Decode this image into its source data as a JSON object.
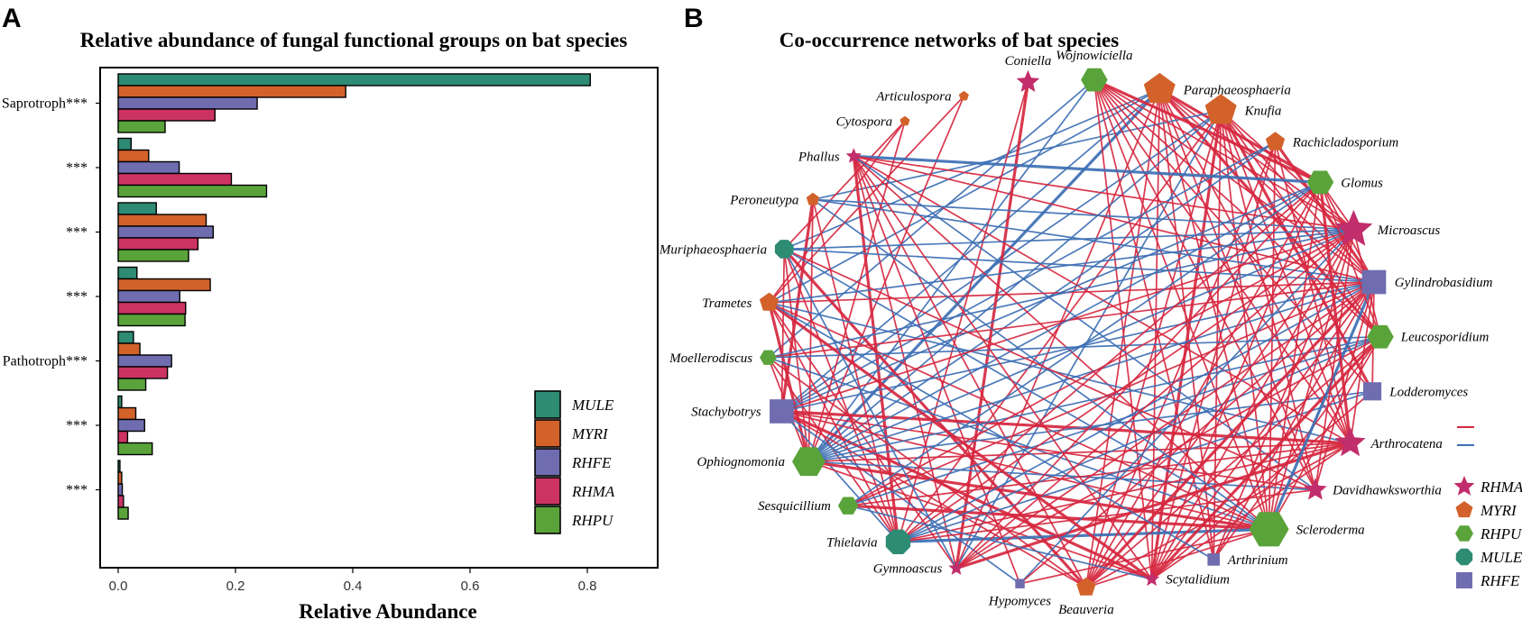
{
  "panels": {
    "a_letter": "A",
    "b_letter": "B"
  },
  "chart_data": [
    {
      "type": "bar",
      "orientation": "horizontal",
      "title": "Relative abundance of fungal functional groups on bat species",
      "xlabel": "Relative Abundance",
      "ylabel": "",
      "xlim": [
        0,
        0.8
      ],
      "xticks": [
        "0.0",
        "0.2",
        "0.4",
        "0.6",
        "0.8"
      ],
      "xtick_values": [
        0,
        0.2,
        0.4,
        0.6,
        0.8
      ],
      "categories": [
        "Saprotroph***",
        "***",
        "***",
        "***",
        "Pathotroph***",
        "***",
        "***"
      ],
      "series": [
        {
          "name": "MULE",
          "color": "#2e8b74",
          "values": [
            0.805,
            0.022,
            0.065,
            0.032,
            0.026,
            0.006,
            0.003
          ]
        },
        {
          "name": "MYRI",
          "color": "#d2622a",
          "values": [
            0.388,
            0.052,
            0.15,
            0.157,
            0.037,
            0.03,
            0.006
          ]
        },
        {
          "name": "RHFE",
          "color": "#6f6db0",
          "values": [
            0.237,
            0.104,
            0.162,
            0.105,
            0.091,
            0.045,
            0.007
          ]
        },
        {
          "name": "RHMA",
          "color": "#cc3363",
          "values": [
            0.165,
            0.193,
            0.136,
            0.115,
            0.084,
            0.016,
            0.009
          ]
        },
        {
          "name": "RHPU",
          "color": "#5aa33a",
          "values": [
            0.08,
            0.253,
            0.12,
            0.114,
            0.047,
            0.058,
            0.017
          ]
        }
      ],
      "legend_position": "bottom-right"
    },
    {
      "type": "network",
      "title": "Co-occurrence networks of bat species",
      "edge_colors": {
        "positive": "#d6273f",
        "negative": "#3d6fb4"
      },
      "node_types": [
        {
          "name": "RHMA",
          "shape": "star",
          "color": "#c22d6b"
        },
        {
          "name": "MYRI",
          "shape": "pentagon",
          "color": "#d2622a"
        },
        {
          "name": "RHPU",
          "shape": "hexagon",
          "color": "#5aa33a"
        },
        {
          "name": "MULE",
          "shape": "octagon",
          "color": "#2e8b74"
        },
        {
          "name": "RHFE",
          "shape": "square",
          "color": "#6f6db0"
        }
      ],
      "nodes": [
        {
          "name": "Coniella",
          "type": "RHMA",
          "size": 2
        },
        {
          "name": "Wojnowiciella",
          "type": "RHPU",
          "size": 3
        },
        {
          "name": "Paraphaeosphaeria",
          "type": "MYRI",
          "size": 4
        },
        {
          "name": "Knufia",
          "type": "MYRI",
          "size": 4
        },
        {
          "name": "Rachicladosporium",
          "type": "MYRI",
          "size": 2
        },
        {
          "name": "Glomus",
          "type": "RHPU",
          "size": 3
        },
        {
          "name": "Microascus",
          "type": "RHMA",
          "size": 4
        },
        {
          "name": "Gylindrobasidium",
          "type": "RHFE",
          "size": 3
        },
        {
          "name": "Leucosporidium",
          "type": "RHPU",
          "size": 3
        },
        {
          "name": "Lodderomyces",
          "type": "RHFE",
          "size": 2
        },
        {
          "name": "Arthrocatena",
          "type": "RHMA",
          "size": 3
        },
        {
          "name": "Davidhawksworthia",
          "type": "RHMA",
          "size": 2
        },
        {
          "name": "Scleroderma",
          "type": "RHPU",
          "size": 5
        },
        {
          "name": "Arthrinium",
          "type": "RHFE",
          "size": 1
        },
        {
          "name": "Scytalidium",
          "type": "RHMA",
          "size": 1
        },
        {
          "name": "Beauveria",
          "type": "MYRI",
          "size": 2
        },
        {
          "name": "Hypomyces",
          "type": "RHFE",
          "size": 0.5
        },
        {
          "name": "Gymnoascus",
          "type": "RHMA",
          "size": 1
        },
        {
          "name": "Thielavia",
          "type": "MULE",
          "size": 3
        },
        {
          "name": "Sesquicillium",
          "type": "RHPU",
          "size": 2
        },
        {
          "name": "Ophiognomonia",
          "type": "RHPU",
          "size": 4
        },
        {
          "name": "Stachybotrys",
          "type": "RHFE",
          "size": 3
        },
        {
          "name": "Moellerodiscus",
          "type": "RHPU",
          "size": 1.5
        },
        {
          "name": "Trametes",
          "type": "MYRI",
          "size": 2
        },
        {
          "name": "Muriphaeosphaeria",
          "type": "MULE",
          "size": 2
        },
        {
          "name": "Peroneutypa",
          "type": "MYRI",
          "size": 1
        },
        {
          "name": "Phallus",
          "type": "RHMA",
          "size": 1
        },
        {
          "name": "Cytospora",
          "type": "MYRI",
          "size": 0.5
        },
        {
          "name": "Articulospora",
          "type": "MYRI",
          "size": 0.5
        }
      ],
      "edges": [
        [
          2,
          5,
          "p"
        ],
        [
          2,
          6,
          "p"
        ],
        [
          2,
          7,
          "p"
        ],
        [
          2,
          10,
          "p"
        ],
        [
          2,
          12,
          "p"
        ],
        [
          2,
          13,
          "p"
        ],
        [
          2,
          14,
          "p"
        ],
        [
          2,
          20,
          "n"
        ],
        [
          2,
          21,
          "n"
        ],
        [
          2,
          24,
          "n"
        ],
        [
          2,
          23,
          "n"
        ],
        [
          2,
          17,
          "p"
        ],
        [
          2,
          15,
          "p"
        ],
        [
          2,
          11,
          "p"
        ],
        [
          2,
          8,
          "p"
        ],
        [
          3,
          6,
          "p"
        ],
        [
          3,
          7,
          "p"
        ],
        [
          3,
          8,
          "p"
        ],
        [
          3,
          10,
          "p"
        ],
        [
          3,
          11,
          "p"
        ],
        [
          3,
          12,
          "p"
        ],
        [
          3,
          14,
          "p"
        ],
        [
          3,
          15,
          "p"
        ],
        [
          3,
          13,
          "p"
        ],
        [
          3,
          18,
          "p"
        ],
        [
          3,
          21,
          "n"
        ],
        [
          3,
          20,
          "n"
        ],
        [
          3,
          25,
          "n"
        ],
        [
          3,
          9,
          "p"
        ],
        [
          3,
          17,
          "n"
        ],
        [
          1,
          7,
          "p"
        ],
        [
          1,
          10,
          "p"
        ],
        [
          1,
          12,
          "p"
        ],
        [
          1,
          6,
          "p"
        ],
        [
          1,
          14,
          "p"
        ],
        [
          1,
          5,
          "p"
        ],
        [
          1,
          8,
          "p"
        ],
        [
          1,
          11,
          "p"
        ],
        [
          1,
          20,
          "n"
        ],
        [
          1,
          22,
          "n"
        ],
        [
          1,
          9,
          "p"
        ],
        [
          1,
          13,
          "p"
        ],
        [
          4,
          7,
          "p"
        ],
        [
          4,
          10,
          "p"
        ],
        [
          4,
          12,
          "p"
        ],
        [
          4,
          14,
          "p"
        ],
        [
          4,
          15,
          "p"
        ],
        [
          4,
          20,
          "n"
        ],
        [
          4,
          21,
          "n"
        ],
        [
          0,
          17,
          "p"
        ],
        [
          0,
          18,
          "p"
        ],
        [
          28,
          20,
          "p"
        ],
        [
          28,
          23,
          "p"
        ],
        [
          27,
          20,
          "p"
        ],
        [
          27,
          24,
          "p"
        ],
        [
          27,
          23,
          "p"
        ],
        [
          26,
          5,
          "n"
        ],
        [
          26,
          6,
          "p"
        ],
        [
          26,
          7,
          "p"
        ],
        [
          26,
          10,
          "p"
        ],
        [
          26,
          12,
          "p"
        ],
        [
          26,
          16,
          "p"
        ],
        [
          26,
          17,
          "p"
        ],
        [
          26,
          18,
          "p"
        ],
        [
          26,
          15,
          "p"
        ],
        [
          26,
          11,
          "n"
        ],
        [
          25,
          6,
          "n"
        ],
        [
          25,
          7,
          "n"
        ],
        [
          25,
          20,
          "p"
        ],
        [
          25,
          18,
          "p"
        ],
        [
          25,
          21,
          "p"
        ],
        [
          24,
          6,
          "n"
        ],
        [
          24,
          7,
          "n"
        ],
        [
          24,
          12,
          "n"
        ],
        [
          24,
          20,
          "p"
        ],
        [
          24,
          18,
          "p"
        ],
        [
          24,
          21,
          "p"
        ],
        [
          24,
          15,
          "p"
        ],
        [
          23,
          7,
          "p"
        ],
        [
          23,
          6,
          "n"
        ],
        [
          23,
          12,
          "p"
        ],
        [
          23,
          18,
          "p"
        ],
        [
          23,
          17,
          "p"
        ],
        [
          23,
          10,
          "n"
        ],
        [
          23,
          20,
          "p"
        ],
        [
          22,
          6,
          "n"
        ],
        [
          22,
          7,
          "p"
        ],
        [
          22,
          8,
          "n"
        ],
        [
          22,
          12,
          "n"
        ],
        [
          22,
          18,
          "p"
        ],
        [
          22,
          20,
          "p"
        ],
        [
          21,
          10,
          "p"
        ],
        [
          21,
          11,
          "p"
        ],
        [
          21,
          12,
          "p"
        ],
        [
          21,
          7,
          "n"
        ],
        [
          21,
          6,
          "p"
        ],
        [
          21,
          18,
          "n"
        ],
        [
          21,
          5,
          "n"
        ],
        [
          21,
          14,
          "p"
        ],
        [
          21,
          15,
          "p"
        ],
        [
          21,
          16,
          "n"
        ],
        [
          20,
          6,
          "n"
        ],
        [
          20,
          7,
          "n"
        ],
        [
          20,
          10,
          "p"
        ],
        [
          20,
          11,
          "n"
        ],
        [
          20,
          12,
          "p"
        ],
        [
          20,
          5,
          "n"
        ],
        [
          20,
          8,
          "n"
        ],
        [
          20,
          14,
          "p"
        ],
        [
          20,
          9,
          "n"
        ],
        [
          19,
          6,
          "p"
        ],
        [
          19,
          7,
          "p"
        ],
        [
          19,
          12,
          "p"
        ],
        [
          19,
          10,
          "p"
        ],
        [
          19,
          5,
          "n"
        ],
        [
          19,
          8,
          "n"
        ],
        [
          18,
          6,
          "p"
        ],
        [
          18,
          7,
          "n"
        ],
        [
          18,
          10,
          "p"
        ],
        [
          18,
          12,
          "n"
        ],
        [
          18,
          5,
          "p"
        ],
        [
          18,
          8,
          "n"
        ],
        [
          18,
          9,
          "n"
        ],
        [
          18,
          11,
          "p"
        ],
        [
          17,
          7,
          "p"
        ],
        [
          17,
          6,
          "p"
        ],
        [
          17,
          10,
          "p"
        ],
        [
          17,
          5,
          "p"
        ],
        [
          17,
          8,
          "p"
        ],
        [
          16,
          6,
          "n"
        ],
        [
          16,
          7,
          "p"
        ],
        [
          16,
          12,
          "p"
        ],
        [
          15,
          6,
          "p"
        ],
        [
          15,
          7,
          "p"
        ],
        [
          15,
          10,
          "p"
        ],
        [
          15,
          5,
          "p"
        ],
        [
          15,
          8,
          "p"
        ],
        [
          15,
          12,
          "p"
        ],
        [
          14,
          6,
          "p"
        ],
        [
          14,
          7,
          "p"
        ],
        [
          14,
          8,
          "p"
        ],
        [
          14,
          10,
          "p"
        ],
        [
          14,
          5,
          "p"
        ],
        [
          14,
          9,
          "p"
        ],
        [
          13,
          7,
          "p"
        ],
        [
          13,
          6,
          "p"
        ],
        [
          13,
          8,
          "p"
        ],
        [
          12,
          7,
          "n"
        ],
        [
          12,
          6,
          "p"
        ],
        [
          12,
          8,
          "p"
        ],
        [
          12,
          5,
          "p"
        ],
        [
          11,
          7,
          "p"
        ],
        [
          11,
          6,
          "p"
        ],
        [
          10,
          7,
          "p"
        ],
        [
          10,
          5,
          "p"
        ],
        [
          9,
          7,
          "p"
        ],
        [
          8,
          6,
          "p"
        ],
        [
          8,
          5,
          "p"
        ],
        [
          7,
          5,
          "p"
        ],
        [
          6,
          5,
          "p"
        ],
        [
          26,
          14,
          "p"
        ],
        [
          23,
          14,
          "p"
        ],
        [
          24,
          17,
          "n"
        ],
        [
          22,
          15,
          "p"
        ],
        [
          19,
          14,
          "n"
        ],
        [
          25,
          12,
          "n"
        ],
        [
          24,
          11,
          "p"
        ],
        [
          23,
          13,
          "n"
        ]
      ],
      "edge_legend": [
        "",
        ""
      ],
      "legend_position": "bottom-right"
    }
  ]
}
